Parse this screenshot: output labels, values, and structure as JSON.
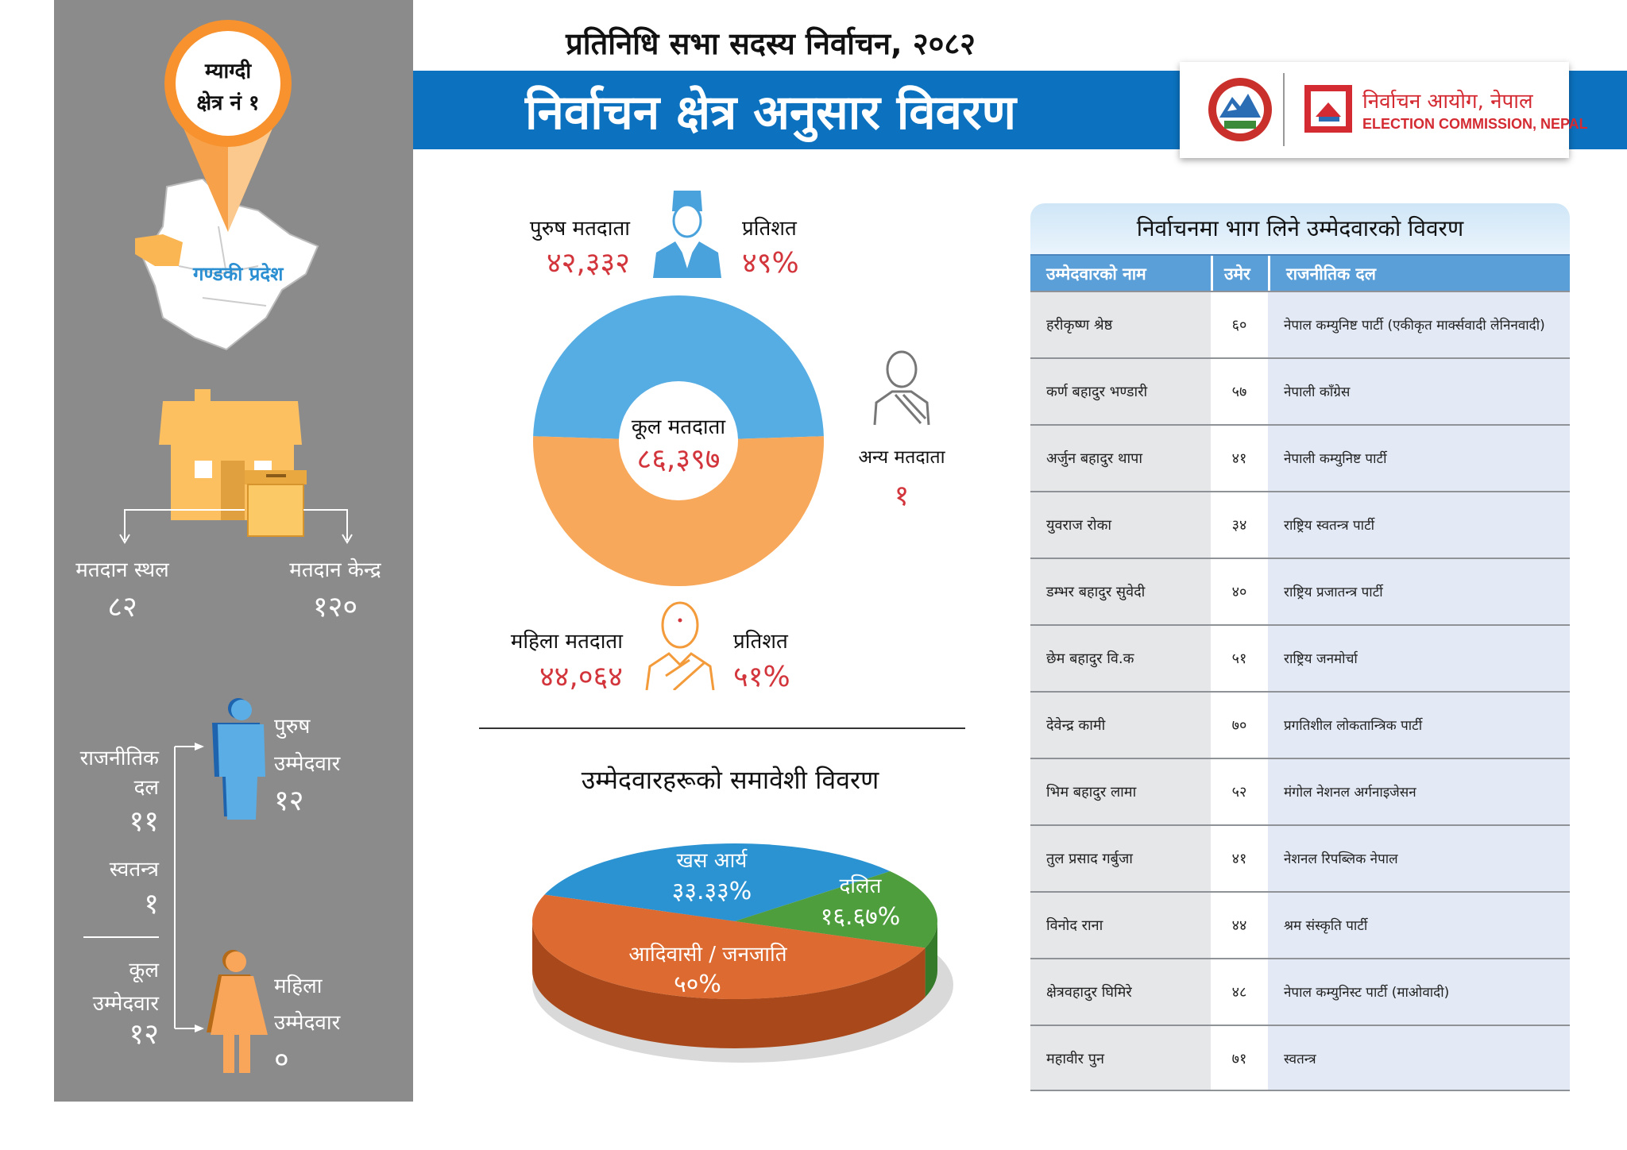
{
  "header": {
    "subtitle": "प्रतिनिधि सभा सदस्य निर्वाचन, २०८२",
    "title": "निर्वाचन क्षेत्र अनुसार विवरण"
  },
  "logo": {
    "name_np": "निर्वाचन आयोग, नेपाल",
    "name_en": "ELECTION COMMISSION, NEPAL"
  },
  "constituency": {
    "district": "म्याग्दी",
    "number": "क्षेत्र नं १",
    "province": "गण्डकी प्रदेश"
  },
  "polling": {
    "stations_label": "मतदान स्थल",
    "stations": "८२",
    "centers_label": "मतदान केन्द्र",
    "centers": "१२०"
  },
  "candidates_summary": {
    "party_label_1": "राजनीतिक",
    "party_label_2": "दल",
    "party": "११",
    "independent_label": "स्वतन्त्र",
    "independent": "१",
    "total_label_1": "कूल",
    "total_label_2": "उम्मेदवार",
    "total": "१२",
    "male_label_1": "पुरुष",
    "male_label_2": "उम्मेदवार",
    "male": "१२",
    "female_label_1": "महिला",
    "female_label_2": "उम्मेदवार",
    "female": "०"
  },
  "voters": {
    "male_label": "पुरुष मतदाता",
    "male": "४२,३३२",
    "male_pct_label": "प्रतिशत",
    "male_pct": "४९%",
    "female_label": "महिला मतदाता",
    "female": "४४,०६४",
    "female_pct_label": "प्रतिशत",
    "female_pct": "५१%",
    "total_label": "कूल मतदाता",
    "total": "८६,३९७",
    "other_label": "अन्य मतदाता",
    "other": "१"
  },
  "inclusion": {
    "title": "उम्मेदवारहरूको समावेशी विवरण"
  },
  "chart_data": [
    {
      "type": "pie",
      "variant": "donut",
      "series": [
        {
          "name": "पुरुष मतदाता",
          "value": 42332,
          "color": "#56ade3"
        },
        {
          "name": "महिला मतदाता",
          "value": 44064,
          "color": "#f7a85a"
        },
        {
          "name": "अन्य मतदाता",
          "value": 1
        }
      ]
    },
    {
      "type": "pie",
      "variant": "3d",
      "title": "उम्मेदवारहरूको समावेशी विवरण",
      "series": [
        {
          "name": "खस आर्य",
          "value": 33.33,
          "label": "३३.३३%",
          "color": "#2b93d1"
        },
        {
          "name": "दलित",
          "value": 16.67,
          "label": "१६.६७%",
          "color": "#4e9e3e"
        },
        {
          "name": "आदिवासी / जनजाति",
          "value": 50,
          "label": "५०%",
          "color": "#dd6a30"
        }
      ]
    }
  ],
  "table": {
    "title": "निर्वाचनमा भाग लिने उम्मेदवारको विवरण",
    "columns": [
      "उम्मेदवारको नाम",
      "उमेर",
      "राजनीतिक दल"
    ],
    "rows": [
      [
        "हरीकृष्ण श्रेष्ठ",
        "६०",
        "नेपाल कम्युनिष्ट पार्टी (एकीकृत मार्क्सवादी लेनिनवादी)"
      ],
      [
        "कर्ण बहादुर भण्डारी",
        "५७",
        "नेपाली काँग्रेस"
      ],
      [
        "अर्जुन बहादुर थापा",
        "४१",
        "नेपाली कम्युनिष्ट पार्टी"
      ],
      [
        "युवराज रोका",
        "३४",
        "राष्ट्रिय स्वतन्त्र पार्टी"
      ],
      [
        "डम्भर बहादुर सुवेदी",
        "४०",
        "राष्ट्रिय प्रजातन्त्र पार्टी"
      ],
      [
        "छेम बहादुर वि.क",
        "५१",
        "राष्ट्रिय जनमोर्चा"
      ],
      [
        "देवेन्द्र कामी",
        "७०",
        "प्रगतिशील लोकतान्त्रिक पार्टी"
      ],
      [
        "भिम बहादुर लामा",
        "५२",
        "मंगोल नेशनल अर्गनाइजेसन"
      ],
      [
        "तुल प्रसाद गर्बुजा",
        "४१",
        "नेशनल रिपब्लिक नेपाल"
      ],
      [
        "विनोद राना",
        "४४",
        "श्रम संस्कृति पार्टी"
      ],
      [
        "क्षेत्रवहादुर घिमिरे",
        "४८",
        "नेपाल कम्युनिस्ट पार्टी (माओवादी)"
      ],
      [
        "महावीर पुन",
        "७१",
        "स्वतन्त्र"
      ]
    ]
  }
}
